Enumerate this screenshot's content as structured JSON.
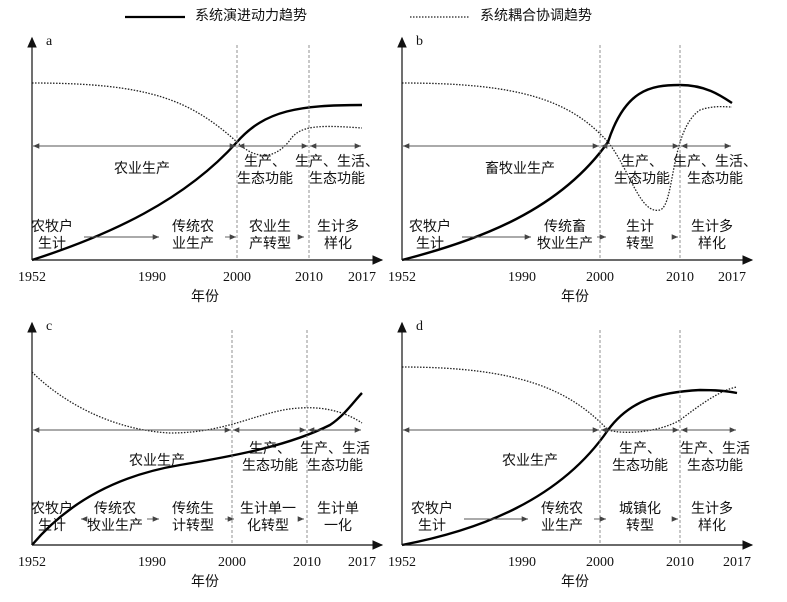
{
  "legend": [
    "系统演进动力趋势",
    "系统耦合协调趋势"
  ],
  "panels": [
    {
      "label": "a",
      "x_label": "年份",
      "ticks": [
        "1952",
        "1990",
        "2000",
        "2010",
        "2017"
      ],
      "stages": [
        [
          "农业生产"
        ],
        [
          "生产、",
          "生态功能"
        ],
        [
          "生产、生活、",
          "生态功能"
        ]
      ],
      "livelihoods": [
        [
          "农牧户",
          "生计"
        ],
        [
          "传统农",
          "业生产"
        ],
        [
          "农业生",
          "产转型"
        ],
        [
          "生计多",
          "样化"
        ]
      ]
    },
    {
      "label": "b",
      "x_label": "年份",
      "ticks": [
        "1952",
        "1990",
        "2000",
        "2010",
        "2017"
      ],
      "stages": [
        [
          "畜牧业生产"
        ],
        [
          "生产、",
          "生态功能"
        ],
        [
          "生产、生活、",
          "生态功能"
        ]
      ],
      "livelihoods": [
        [
          "农牧户",
          "生计"
        ],
        [
          "传统畜",
          "牧业生产"
        ],
        [
          "生计",
          "转型"
        ],
        [
          "生计多",
          "样化"
        ]
      ]
    },
    {
      "label": "c",
      "x_label": "年份",
      "ticks": [
        "1952",
        "1990",
        "2000",
        "2010",
        "2017"
      ],
      "stages": [
        [
          "农业生产"
        ],
        [
          "生产、",
          "生态功能"
        ],
        [
          "生产、生活",
          "生态功能"
        ]
      ],
      "livelihoods": [
        [
          "农牧户",
          "生计"
        ],
        [
          "传统农",
          "牧业生产"
        ],
        [
          "传统生",
          "计转型"
        ],
        [
          "生计单一",
          "化转型"
        ],
        [
          "生计单",
          "一化"
        ]
      ]
    },
    {
      "label": "d",
      "x_label": "年份",
      "ticks": [
        "1952",
        "1990",
        "2000",
        "2010",
        "2017"
      ],
      "stages": [
        [
          "农业生产"
        ],
        [
          "生产、",
          "生态功能"
        ],
        [
          "生产、生活",
          "生态功能"
        ]
      ],
      "livelihoods": [
        [
          "农牧户",
          "生计"
        ],
        [
          "传统农",
          "业生产"
        ],
        [
          "城镇化",
          "转型"
        ],
        [
          "生计多",
          "样化"
        ]
      ]
    }
  ]
}
